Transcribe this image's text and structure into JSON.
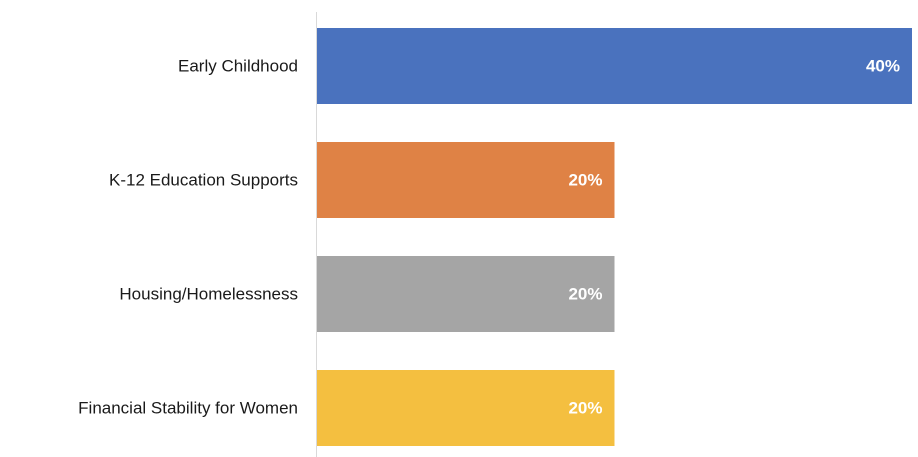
{
  "chart_data": {
    "type": "bar",
    "orientation": "horizontal",
    "categories": [
      "Early Childhood",
      "K-12 Education Supports",
      "Housing/Homelessness",
      "Financial Stability for Women"
    ],
    "values": [
      40,
      20,
      20,
      20
    ],
    "value_labels": [
      "40%",
      "20%",
      "20%",
      "20%"
    ],
    "colors": [
      "#4a72be",
      "#df8245",
      "#a5a5a5",
      "#f4bf40"
    ],
    "xlim": [
      0,
      40
    ],
    "grid": false,
    "legend": "none"
  }
}
